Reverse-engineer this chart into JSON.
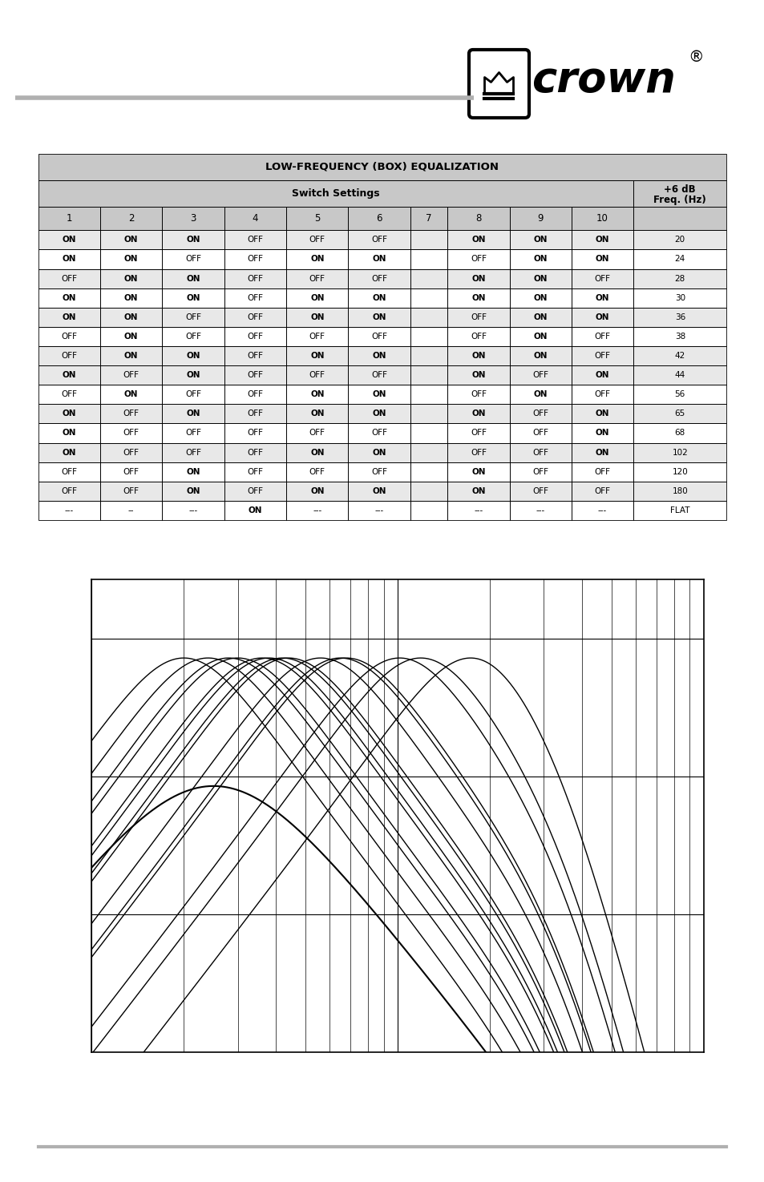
{
  "title": "LOW-FREQUENCY (BOX) EQUALIZATION",
  "header_switch": "Switch Settings",
  "header_freq": "+6 dB\nFreq. (Hz)",
  "rows": [
    [
      "ON",
      "ON",
      "ON",
      "OFF",
      "OFF",
      "OFF",
      "",
      "ON",
      "ON",
      "ON",
      "20"
    ],
    [
      "ON",
      "ON",
      "OFF",
      "OFF",
      "ON",
      "ON",
      "",
      "OFF",
      "ON",
      "ON",
      "24"
    ],
    [
      "OFF",
      "ON",
      "ON",
      "OFF",
      "OFF",
      "OFF",
      "",
      "ON",
      "ON",
      "OFF",
      "28"
    ],
    [
      "ON",
      "ON",
      "ON",
      "OFF",
      "ON",
      "ON",
      "",
      "ON",
      "ON",
      "ON",
      "30"
    ],
    [
      "ON",
      "ON",
      "OFF",
      "OFF",
      "ON",
      "ON",
      "",
      "OFF",
      "ON",
      "ON",
      "36"
    ],
    [
      "OFF",
      "ON",
      "OFF",
      "OFF",
      "OFF",
      "OFF",
      "",
      "OFF",
      "ON",
      "OFF",
      "38"
    ],
    [
      "OFF",
      "ON",
      "ON",
      "OFF",
      "ON",
      "ON",
      "",
      "ON",
      "ON",
      "OFF",
      "42"
    ],
    [
      "ON",
      "OFF",
      "ON",
      "OFF",
      "OFF",
      "OFF",
      "",
      "ON",
      "OFF",
      "ON",
      "44"
    ],
    [
      "OFF",
      "ON",
      "OFF",
      "OFF",
      "ON",
      "ON",
      "",
      "OFF",
      "ON",
      "OFF",
      "56"
    ],
    [
      "ON",
      "OFF",
      "ON",
      "OFF",
      "ON",
      "ON",
      "",
      "ON",
      "OFF",
      "ON",
      "65"
    ],
    [
      "ON",
      "OFF",
      "OFF",
      "OFF",
      "OFF",
      "OFF",
      "",
      "OFF",
      "OFF",
      "ON",
      "68"
    ],
    [
      "ON",
      "OFF",
      "OFF",
      "OFF",
      "ON",
      "ON",
      "",
      "OFF",
      "OFF",
      "ON",
      "102"
    ],
    [
      "OFF",
      "OFF",
      "ON",
      "OFF",
      "OFF",
      "OFF",
      "",
      "ON",
      "OFF",
      "OFF",
      "120"
    ],
    [
      "OFF",
      "OFF",
      "ON",
      "OFF",
      "ON",
      "ON",
      "",
      "ON",
      "OFF",
      "OFF",
      "180"
    ],
    [
      "---",
      "--",
      "---",
      "ON",
      "---",
      "---",
      "",
      "---",
      "---",
      "---",
      "FLAT"
    ]
  ],
  "gray_rows": [
    0,
    2,
    4,
    6,
    7,
    9,
    11,
    13
  ],
  "peak_freqs": [
    20,
    24,
    28,
    30,
    36,
    38,
    42,
    44,
    56,
    65,
    68,
    102,
    120,
    180
  ],
  "bg_color": "#ffffff",
  "header_bg": "#c8c8c8",
  "row_alt_bg": "#e8e8e8",
  "row_white_bg": "#ffffff"
}
